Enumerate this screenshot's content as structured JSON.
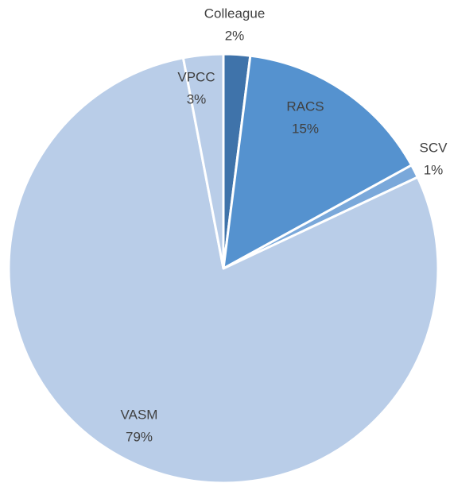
{
  "chart_data": {
    "type": "pie",
    "categories": [
      "Colleague",
      "RACS",
      "SCV",
      "VASM",
      "VPCC"
    ],
    "values": [
      2,
      15,
      1,
      79,
      3
    ],
    "value_labels": [
      "2%",
      "15%",
      "1%",
      "79%",
      "3%"
    ],
    "colors": [
      "#3f73aa",
      "#5592cf",
      "#7aa8da",
      "#b9cde8",
      "#b9cde8"
    ]
  }
}
